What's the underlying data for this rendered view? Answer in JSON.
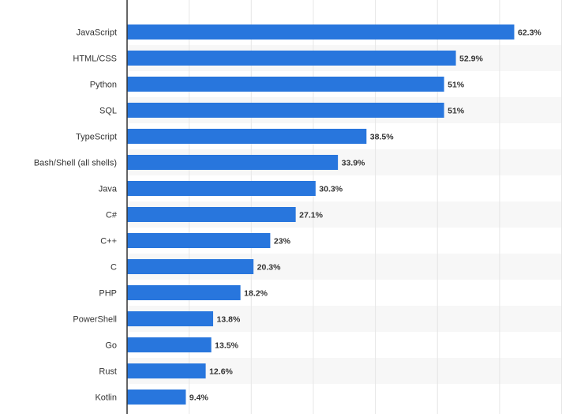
{
  "chart_data": {
    "type": "bar",
    "orientation": "horizontal",
    "title": "",
    "xlabel": "",
    "ylabel": "",
    "categories": [
      "JavaScript",
      "HTML/CSS",
      "Python",
      "SQL",
      "TypeScript",
      "Bash/Shell (all shells)",
      "Java",
      "C#",
      "C++",
      "C",
      "PHP",
      "PowerShell",
      "Go",
      "Rust",
      "Kotlin"
    ],
    "values": [
      62.3,
      52.9,
      51,
      51,
      38.5,
      33.9,
      30.3,
      27.1,
      23,
      20.3,
      18.2,
      13.8,
      13.5,
      12.6,
      9.4
    ],
    "value_labels": [
      "62.3%",
      "52.9%",
      "51%",
      "51%",
      "38.5%",
      "33.9%",
      "30.3%",
      "27.1%",
      "23%",
      "20.3%",
      "18.2%",
      "13.8%",
      "13.5%",
      "12.6%",
      "9.4%"
    ],
    "xlim": [
      0,
      70
    ],
    "grid": true,
    "colors": {
      "bar": "#2876dd",
      "band": "#f7f7f7",
      "grid": "#e6e6e6",
      "axis": "#333333"
    }
  }
}
